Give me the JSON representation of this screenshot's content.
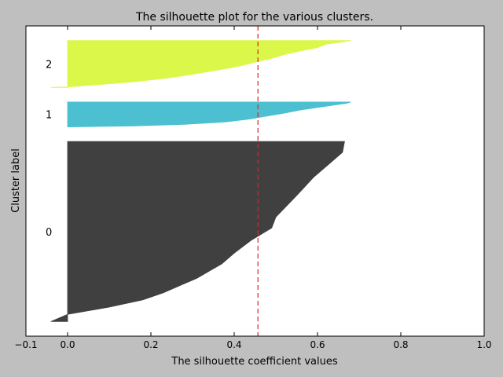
{
  "chart_data": {
    "type": "area",
    "title": "The silhouette plot for the various clusters.",
    "xlabel": "The silhouette coefficient values",
    "ylabel": "Cluster label",
    "xlim": [
      -0.1,
      1.0
    ],
    "xticks": [
      -0.1,
      0.0,
      0.2,
      0.4,
      0.6,
      0.8,
      1.0
    ],
    "xtick_labels": [
      "−0.1",
      "0.0",
      "0.2",
      "0.4",
      "0.6",
      "0.8",
      "1.0"
    ],
    "average_silhouette": 0.457,
    "reference_line_color": "#d62728",
    "grid": false,
    "series": [
      {
        "name": "0",
        "color": "#404040",
        "sample_range": [
          10,
          133
        ],
        "profile": [
          [
            0,
            0.665
          ],
          [
            0.06,
            0.66
          ],
          [
            0.12,
            0.63
          ],
          [
            0.2,
            0.59
          ],
          [
            0.3,
            0.55
          ],
          [
            0.42,
            0.5
          ],
          [
            0.48,
            0.49
          ],
          [
            0.55,
            0.44
          ],
          [
            0.62,
            0.4
          ],
          [
            0.68,
            0.37
          ],
          [
            0.72,
            0.34
          ],
          [
            0.76,
            0.31
          ],
          [
            0.8,
            0.27
          ],
          [
            0.84,
            0.23
          ],
          [
            0.88,
            0.18
          ],
          [
            0.92,
            0.1
          ],
          [
            0.94,
            0.05
          ],
          [
            0.96,
            0.0
          ],
          [
            1.0,
            -0.04
          ]
        ]
      },
      {
        "name": "1",
        "color": "#4cbfd0",
        "sample_range": [
          143,
          160
        ],
        "profile": [
          [
            0,
            0.68
          ],
          [
            0.05,
            0.67
          ],
          [
            0.12,
            0.64
          ],
          [
            0.22,
            0.6
          ],
          [
            0.32,
            0.56
          ],
          [
            0.45,
            0.52
          ],
          [
            0.56,
            0.48
          ],
          [
            0.68,
            0.44
          ],
          [
            0.8,
            0.38
          ],
          [
            0.9,
            0.28
          ],
          [
            0.96,
            0.16
          ],
          [
            1.0,
            0.0
          ]
        ]
      },
      {
        "name": "2",
        "color": "#dbf74a",
        "sample_range": [
          170,
          202
        ],
        "profile": [
          [
            0,
            0.68
          ],
          [
            0.03,
            0.66
          ],
          [
            0.08,
            0.62
          ],
          [
            0.15,
            0.6
          ],
          [
            0.22,
            0.56
          ],
          [
            0.3,
            0.52
          ],
          [
            0.38,
            0.49
          ],
          [
            0.46,
            0.45
          ],
          [
            0.53,
            0.42
          ],
          [
            0.6,
            0.38
          ],
          [
            0.66,
            0.34
          ],
          [
            0.72,
            0.3
          ],
          [
            0.8,
            0.24
          ],
          [
            0.88,
            0.16
          ],
          [
            0.95,
            0.06
          ],
          [
            0.99,
            0.0
          ],
          [
            1.0,
            -0.04
          ]
        ]
      }
    ]
  }
}
